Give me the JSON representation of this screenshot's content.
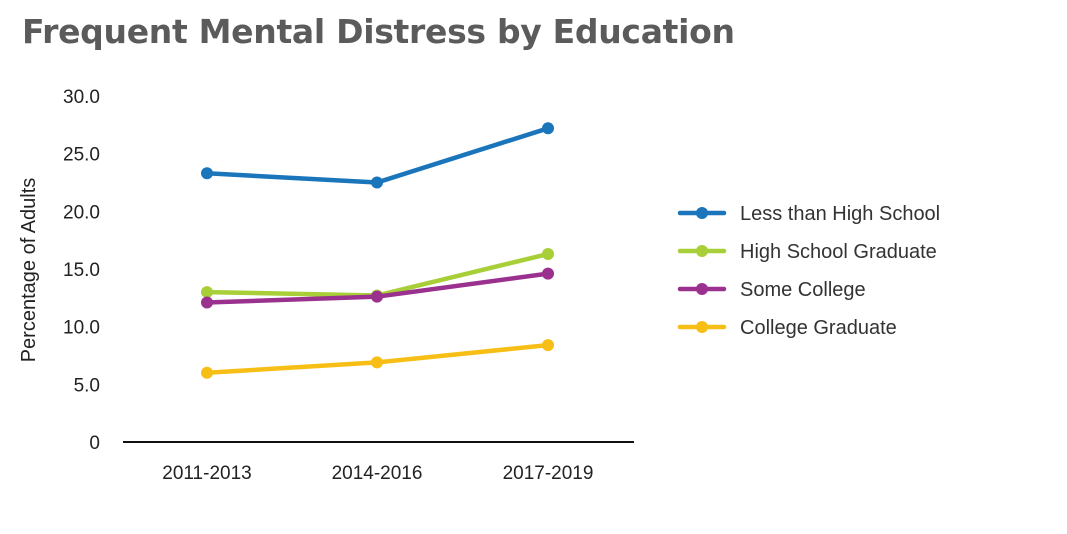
{
  "chart_data": {
    "type": "line",
    "title": "Frequent Mental Distress by Education",
    "ylabel": "Percentage of Adults",
    "xlabel": "",
    "categories": [
      "2011-2013",
      "2014-2016",
      "2017-2019"
    ],
    "yticks": [
      "0",
      "5.0",
      "10.0",
      "15.0",
      "20.0",
      "25.0",
      "30.0"
    ],
    "ylim": [
      0,
      30
    ],
    "grid": false,
    "legend_position": "right",
    "series": [
      {
        "name": "Less than High School",
        "color": "#1a75bb",
        "values": [
          23.3,
          22.5,
          27.2
        ]
      },
      {
        "name": "High School Graduate",
        "color": "#a8cf38",
        "values": [
          13.0,
          12.7,
          16.3
        ]
      },
      {
        "name": "Some College",
        "color": "#9b318f",
        "values": [
          12.1,
          12.6,
          14.6
        ]
      },
      {
        "name": "College Graduate",
        "color": "#f7bf16",
        "values": [
          6.0,
          6.9,
          8.4
        ]
      }
    ]
  }
}
